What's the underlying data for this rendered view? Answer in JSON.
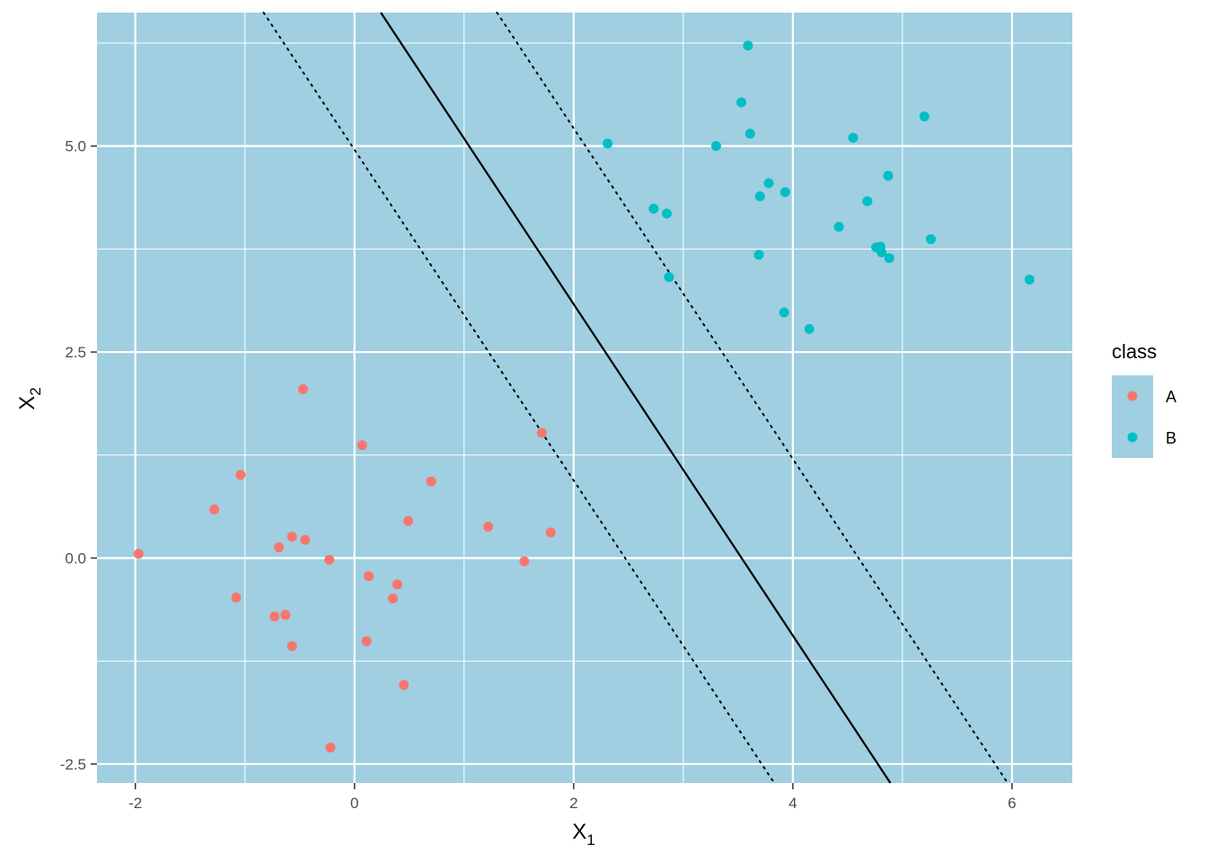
{
  "chart_data": {
    "type": "scatter",
    "xlabel": "X",
    "xlabel_sub": "1",
    "ylabel": "X",
    "ylabel_sub": "2",
    "xlim": [
      -2.35,
      6.55
    ],
    "ylim": [
      -2.73,
      6.62
    ],
    "x_ticks": [
      -2,
      0,
      2,
      4,
      6
    ],
    "y_ticks": [
      -2.5,
      0.0,
      2.5,
      5.0
    ],
    "x_tick_labels": [
      "-2",
      "0",
      "2",
      "4",
      "6"
    ],
    "y_tick_labels": [
      "-2.5",
      "0.0",
      "2.5",
      "5.0"
    ],
    "grid": true,
    "panel_color": "#9fcfe0",
    "grid_color": "#ffffff",
    "legend": {
      "title": "class",
      "position": "right"
    },
    "series": [
      {
        "name": "A",
        "color": "#f8766d",
        "points": [
          [
            -1.97,
            0.05
          ],
          [
            -1.28,
            0.59
          ],
          [
            -1.04,
            1.01
          ],
          [
            -1.08,
            -0.48
          ],
          [
            -0.73,
            -0.71
          ],
          [
            -0.63,
            -0.69
          ],
          [
            -0.69,
            0.13
          ],
          [
            -0.57,
            0.26
          ],
          [
            -0.45,
            0.22
          ],
          [
            -0.57,
            -1.07
          ],
          [
            -0.47,
            2.05
          ],
          [
            -0.23,
            -0.02
          ],
          [
            -0.22,
            -2.3
          ],
          [
            0.07,
            1.37
          ],
          [
            0.11,
            -1.01
          ],
          [
            0.13,
            -0.22
          ],
          [
            0.35,
            -0.49
          ],
          [
            0.39,
            -0.32
          ],
          [
            0.45,
            -1.54
          ],
          [
            0.49,
            0.45
          ],
          [
            0.7,
            0.93
          ],
          [
            1.22,
            0.38
          ],
          [
            1.55,
            -0.04
          ],
          [
            1.71,
            1.52
          ],
          [
            1.79,
            0.31
          ]
        ]
      },
      {
        "name": "B",
        "color": "#00bfc4",
        "points": [
          [
            2.31,
            5.03
          ],
          [
            2.73,
            4.24
          ],
          [
            2.85,
            4.18
          ],
          [
            2.87,
            3.41
          ],
          [
            3.3,
            5.0
          ],
          [
            3.53,
            5.53
          ],
          [
            3.59,
            6.22
          ],
          [
            3.61,
            5.15
          ],
          [
            3.69,
            3.68
          ],
          [
            3.7,
            4.39
          ],
          [
            3.78,
            4.55
          ],
          [
            3.92,
            2.98
          ],
          [
            3.93,
            4.44
          ],
          [
            4.15,
            2.78
          ],
          [
            4.42,
            4.02
          ],
          [
            4.55,
            5.1
          ],
          [
            4.68,
            4.33
          ],
          [
            4.76,
            3.77
          ],
          [
            4.8,
            3.78
          ],
          [
            4.81,
            3.71
          ],
          [
            4.87,
            4.64
          ],
          [
            4.88,
            3.64
          ],
          [
            5.2,
            5.36
          ],
          [
            5.26,
            3.87
          ],
          [
            6.16,
            3.38
          ]
        ]
      }
    ],
    "lines": [
      {
        "name": "decision-boundary",
        "style": "solid",
        "color": "#000000",
        "x": [
          0.24,
          4.89
        ],
        "y": [
          6.62,
          -2.73
        ]
      },
      {
        "name": "margin-lower",
        "style": "dotted",
        "color": "#000000",
        "x": [
          -0.83,
          3.83
        ],
        "y": [
          6.62,
          -2.73
        ]
      },
      {
        "name": "margin-upper",
        "style": "dotted",
        "color": "#000000",
        "x": [
          1.3,
          5.96
        ],
        "y": [
          6.62,
          -2.73
        ]
      }
    ]
  }
}
